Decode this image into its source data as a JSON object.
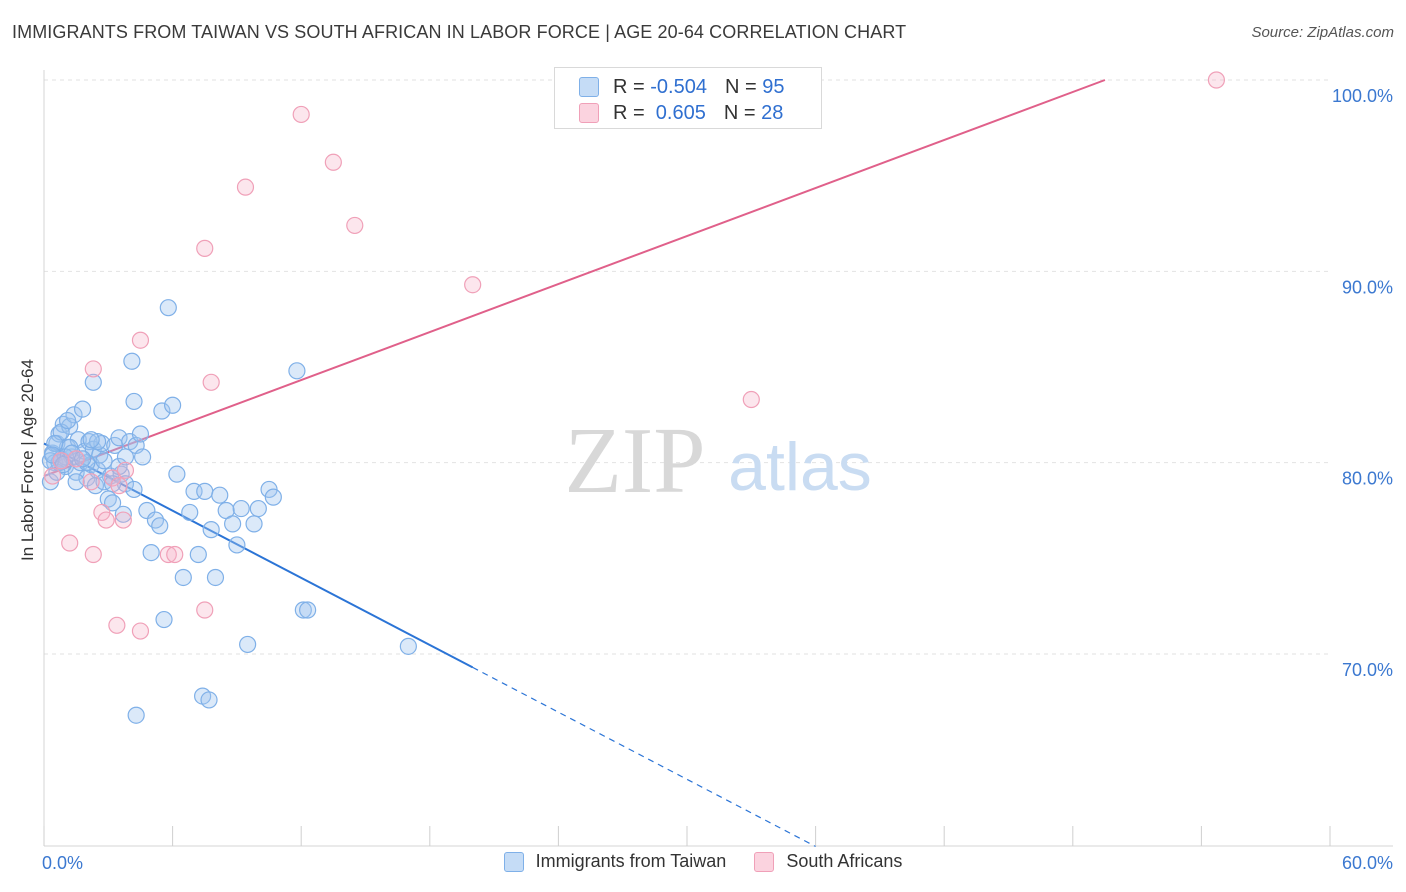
{
  "header": {
    "title": "IMMIGRANTS FROM TAIWAN VS SOUTH AFRICAN IN LABOR FORCE | AGE 20-64 CORRELATION CHART",
    "source": "Source: ZipAtlas.com"
  },
  "legend": {
    "rows": [
      {
        "r_label": "R = ",
        "r_value": "-0.504",
        "n_label": "N = ",
        "n_value": "95",
        "color": "#7fb0e8"
      },
      {
        "r_label": "R = ",
        "r_value": " 0.605",
        "n_label": "N = ",
        "n_value": "28",
        "color": "#f0a0b8"
      }
    ],
    "bottom": [
      {
        "label": "Immigrants from Taiwan",
        "color": "#7fb0e8"
      },
      {
        "label": "South Africans",
        "color": "#f0a0b8"
      }
    ]
  },
  "watermark": {
    "zip": "ZIP",
    "atlas": "atlas"
  },
  "chart_data": {
    "type": "scatter",
    "xlabel": "",
    "ylabel": "In Labor Force | Age 20-64",
    "xlim": [
      0,
      60
    ],
    "ylim": [
      60,
      100
    ],
    "x_tick_labels": [
      "0.0%",
      "60.0%"
    ],
    "y_ticks": [
      70,
      80,
      90,
      100
    ],
    "y_tick_labels": [
      "70.0%",
      "80.0%",
      "90.0%",
      "100.0%"
    ],
    "grid": true,
    "legend_position": "top-center",
    "series": [
      {
        "name": "Immigrants from Taiwan",
        "color": "#7fb0e8",
        "line_color": "#2b74d6",
        "trend": {
          "x0": 0.0,
          "y0": 81.0,
          "x1": 20.0,
          "y1": 69.3,
          "dashed_to_x": 36.0
        },
        "points": [
          [
            0.3,
            79.0
          ],
          [
            0.4,
            80.5
          ],
          [
            0.5,
            80.0
          ],
          [
            0.6,
            81.0
          ],
          [
            0.7,
            81.5
          ],
          [
            0.8,
            80.2
          ],
          [
            0.9,
            82.0
          ],
          [
            1.0,
            79.8
          ],
          [
            1.1,
            80.8
          ],
          [
            1.2,
            81.9
          ],
          [
            1.3,
            80.3
          ],
          [
            1.4,
            82.5
          ],
          [
            1.5,
            79.5
          ],
          [
            1.6,
            81.2
          ],
          [
            1.7,
            80.0
          ],
          [
            1.8,
            82.8
          ],
          [
            1.9,
            80.6
          ],
          [
            2.0,
            79.2
          ],
          [
            2.1,
            81.1
          ],
          [
            2.2,
            79.9
          ],
          [
            2.3,
            80.7
          ],
          [
            2.4,
            78.8
          ],
          [
            2.5,
            79.6
          ],
          [
            2.6,
            80.4
          ],
          [
            2.7,
            81.0
          ],
          [
            2.8,
            80.1
          ],
          [
            3.0,
            78.1
          ],
          [
            3.1,
            79.3
          ],
          [
            3.2,
            77.9
          ],
          [
            3.3,
            80.9
          ],
          [
            3.5,
            81.3
          ],
          [
            3.6,
            79.4
          ],
          [
            3.7,
            77.3
          ],
          [
            3.8,
            78.9
          ],
          [
            4.0,
            81.1
          ],
          [
            4.1,
            85.3
          ],
          [
            4.2,
            83.2
          ],
          [
            4.3,
            80.9
          ],
          [
            4.5,
            81.5
          ],
          [
            4.6,
            80.3
          ],
          [
            4.8,
            77.5
          ],
          [
            5.0,
            75.3
          ],
          [
            5.2,
            77.0
          ],
          [
            5.4,
            76.7
          ],
          [
            5.5,
            82.7
          ],
          [
            5.6,
            71.8
          ],
          [
            5.8,
            88.1
          ],
          [
            6.0,
            83.0
          ],
          [
            6.2,
            79.4
          ],
          [
            6.5,
            74.0
          ],
          [
            6.8,
            77.4
          ],
          [
            7.0,
            78.5
          ],
          [
            7.2,
            75.2
          ],
          [
            7.5,
            78.5
          ],
          [
            7.8,
            76.5
          ],
          [
            8.0,
            74.0
          ],
          [
            8.2,
            78.3
          ],
          [
            8.5,
            77.5
          ],
          [
            8.8,
            76.8
          ],
          [
            9.0,
            75.7
          ],
          [
            9.2,
            77.6
          ],
          [
            9.5,
            70.5
          ],
          [
            9.8,
            76.8
          ],
          [
            10.0,
            77.6
          ],
          [
            10.5,
            78.6
          ],
          [
            10.7,
            78.2
          ],
          [
            11.8,
            84.8
          ],
          [
            12.1,
            72.3
          ],
          [
            12.3,
            72.3
          ],
          [
            17.0,
            70.4
          ],
          [
            2.3,
            84.2
          ],
          [
            1.2,
            80.8
          ],
          [
            0.8,
            81.6
          ],
          [
            1.5,
            79.0
          ],
          [
            2.8,
            79.0
          ],
          [
            3.2,
            78.9
          ],
          [
            1.0,
            80.3
          ],
          [
            0.6,
            79.5
          ],
          [
            0.7,
            80.0
          ],
          [
            1.3,
            80.5
          ],
          [
            2.0,
            80.0
          ],
          [
            3.5,
            79.8
          ],
          [
            1.8,
            80.2
          ],
          [
            4.2,
            78.6
          ],
          [
            7.4,
            67.8
          ],
          [
            7.7,
            67.6
          ],
          [
            4.3,
            66.8
          ],
          [
            0.3,
            80.1
          ],
          [
            0.5,
            81.0
          ],
          [
            3.8,
            80.3
          ],
          [
            2.5,
            81.1
          ],
          [
            1.1,
            82.2
          ],
          [
            0.4,
            80.4
          ],
          [
            2.2,
            81.2
          ],
          [
            0.9,
            79.9
          ]
        ]
      },
      {
        "name": "South Africans",
        "color": "#f0a0b8",
        "line_color": "#e0608a",
        "trend": {
          "x0": 0.0,
          "y0": 79.3,
          "x1": 49.5,
          "y1": 100.0
        },
        "points": [
          [
            0.4,
            79.3
          ],
          [
            0.8,
            80.1
          ],
          [
            1.2,
            75.8
          ],
          [
            1.5,
            80.2
          ],
          [
            2.2,
            79.0
          ],
          [
            2.3,
            75.2
          ],
          [
            2.3,
            84.9
          ],
          [
            2.7,
            77.4
          ],
          [
            2.9,
            77.0
          ],
          [
            3.2,
            79.2
          ],
          [
            3.5,
            78.8
          ],
          [
            3.4,
            71.5
          ],
          [
            3.8,
            79.6
          ],
          [
            4.5,
            86.4
          ],
          [
            4.5,
            71.2
          ],
          [
            5.8,
            75.2
          ],
          [
            6.1,
            75.2
          ],
          [
            7.5,
            72.3
          ],
          [
            7.5,
            91.2
          ],
          [
            7.8,
            84.2
          ],
          [
            9.4,
            94.4
          ],
          [
            12.0,
            98.2
          ],
          [
            13.5,
            95.7
          ],
          [
            14.5,
            92.4
          ],
          [
            20.0,
            89.3
          ],
          [
            33.0,
            83.3
          ],
          [
            54.7,
            100.0
          ],
          [
            3.7,
            77.0
          ]
        ]
      }
    ]
  }
}
